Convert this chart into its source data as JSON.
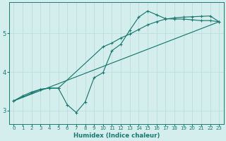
{
  "xlabel": "Humidex (Indice chaleur)",
  "ylabel": "",
  "bg_color": "#d4eeee",
  "line_color": "#1a7a6e",
  "grid_color": "#bcdede",
  "xlim": [
    -0.5,
    23.5
  ],
  "ylim": [
    2.65,
    5.8
  ],
  "xticks": [
    0,
    1,
    2,
    3,
    4,
    5,
    6,
    7,
    8,
    9,
    10,
    11,
    12,
    13,
    14,
    15,
    16,
    17,
    18,
    19,
    20,
    21,
    22,
    23
  ],
  "yticks": [
    3,
    4,
    5
  ],
  "curve1_x": [
    0,
    1,
    2,
    3,
    4,
    5,
    6,
    7,
    8,
    9,
    10,
    11,
    12,
    13,
    14,
    15,
    16,
    17,
    18,
    19,
    20,
    21,
    22,
    23
  ],
  "curve1_y": [
    3.25,
    3.38,
    3.48,
    3.55,
    3.58,
    3.58,
    3.15,
    2.95,
    3.22,
    3.85,
    3.98,
    4.55,
    4.72,
    5.08,
    5.42,
    5.58,
    5.48,
    5.38,
    5.37,
    5.37,
    5.35,
    5.33,
    5.33,
    5.3
  ],
  "curve2_x": [
    0,
    3,
    4,
    5,
    10,
    11,
    12,
    13,
    14,
    15,
    16,
    17,
    18,
    19,
    20,
    21,
    22,
    23
  ],
  "curve2_y": [
    3.25,
    3.55,
    3.58,
    3.58,
    4.65,
    4.75,
    4.88,
    4.98,
    5.1,
    5.22,
    5.3,
    5.37,
    5.4,
    5.42,
    5.43,
    5.44,
    5.45,
    5.3
  ],
  "curve3_x": [
    0,
    23
  ],
  "curve3_y": [
    3.25,
    5.3
  ]
}
